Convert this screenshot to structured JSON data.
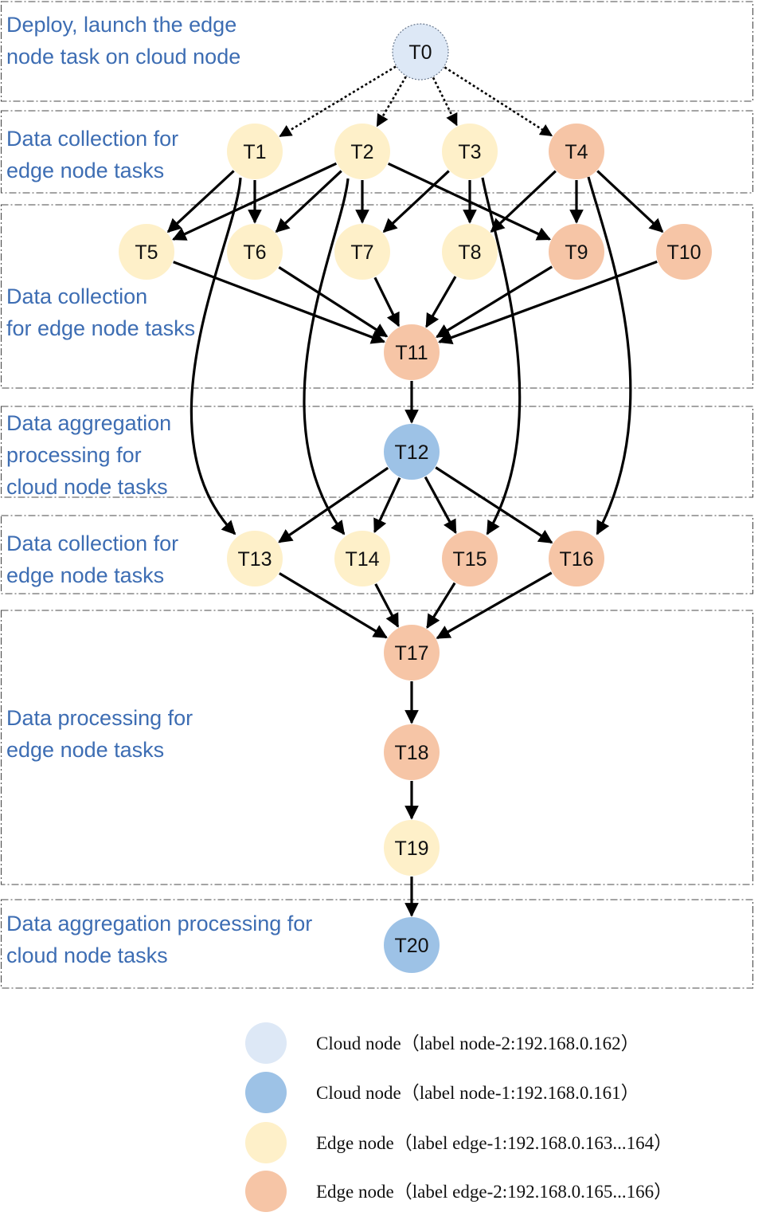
{
  "colors": {
    "cloud_light": "#dde8f6",
    "cloud_dark": "#9dc2e6",
    "edge_light": "#fef0c9",
    "edge_dark": "#f6c5a6",
    "stage_text": "#3d6db3",
    "edge_stroke": "#000000"
  },
  "stages": [
    {
      "lines": [
        "Deploy, launch the edge",
        "node task on cloud node"
      ]
    },
    {
      "lines": [
        "Data collection for",
        "edge node tasks"
      ]
    },
    {
      "lines": [
        "Data collection",
        "for edge node tasks"
      ]
    },
    {
      "lines": [
        "Data aggregation",
        "processing for",
        "cloud node tasks"
      ]
    },
    {
      "lines": [
        "Data collection for",
        "edge node tasks"
      ]
    },
    {
      "lines": [
        "Data processing for",
        "edge node tasks"
      ]
    },
    {
      "lines": [
        "Data aggregation processing for",
        "cloud node tasks"
      ]
    }
  ],
  "nodes": [
    {
      "id": "T0",
      "label": "T0",
      "kind": "cloud_light"
    },
    {
      "id": "T1",
      "label": "T1",
      "kind": "edge_light"
    },
    {
      "id": "T2",
      "label": "T2",
      "kind": "edge_light"
    },
    {
      "id": "T3",
      "label": "T3",
      "kind": "edge_light"
    },
    {
      "id": "T4",
      "label": "T4",
      "kind": "edge_dark"
    },
    {
      "id": "T5",
      "label": "T5",
      "kind": "edge_light"
    },
    {
      "id": "T6",
      "label": "T6",
      "kind": "edge_light"
    },
    {
      "id": "T7",
      "label": "T7",
      "kind": "edge_light"
    },
    {
      "id": "T8",
      "label": "T8",
      "kind": "edge_light"
    },
    {
      "id": "T9",
      "label": "T9",
      "kind": "edge_dark"
    },
    {
      "id": "T10",
      "label": "T10",
      "kind": "edge_dark"
    },
    {
      "id": "T11",
      "label": "T11",
      "kind": "edge_dark"
    },
    {
      "id": "T12",
      "label": "T12",
      "kind": "cloud_dark"
    },
    {
      "id": "T13",
      "label": "T13",
      "kind": "edge_light"
    },
    {
      "id": "T14",
      "label": "T14",
      "kind": "edge_light"
    },
    {
      "id": "T15",
      "label": "T15",
      "kind": "edge_dark"
    },
    {
      "id": "T16",
      "label": "T16",
      "kind": "edge_dark"
    },
    {
      "id": "T17",
      "label": "T17",
      "kind": "edge_dark"
    },
    {
      "id": "T18",
      "label": "T18",
      "kind": "edge_dark"
    },
    {
      "id": "T19",
      "label": "T19",
      "kind": "edge_light"
    },
    {
      "id": "T20",
      "label": "T20",
      "kind": "cloud_dark"
    }
  ],
  "edges": [
    {
      "from": "T0",
      "to": "T1",
      "style": "dotted"
    },
    {
      "from": "T0",
      "to": "T2",
      "style": "dotted"
    },
    {
      "from": "T0",
      "to": "T3",
      "style": "dotted"
    },
    {
      "from": "T0",
      "to": "T4",
      "style": "dotted"
    },
    {
      "from": "T1",
      "to": "T5",
      "style": "solid"
    },
    {
      "from": "T1",
      "to": "T6",
      "style": "solid"
    },
    {
      "from": "T1",
      "to": "T13",
      "style": "solid"
    },
    {
      "from": "T2",
      "to": "T5",
      "style": "solid"
    },
    {
      "from": "T2",
      "to": "T6",
      "style": "solid"
    },
    {
      "from": "T2",
      "to": "T7",
      "style": "solid"
    },
    {
      "from": "T2",
      "to": "T9",
      "style": "solid"
    },
    {
      "from": "T2",
      "to": "T14",
      "style": "solid"
    },
    {
      "from": "T3",
      "to": "T7",
      "style": "solid"
    },
    {
      "from": "T3",
      "to": "T8",
      "style": "solid"
    },
    {
      "from": "T3",
      "to": "T15",
      "style": "solid"
    },
    {
      "from": "T4",
      "to": "T8",
      "style": "solid"
    },
    {
      "from": "T4",
      "to": "T9",
      "style": "solid"
    },
    {
      "from": "T4",
      "to": "T10",
      "style": "solid"
    },
    {
      "from": "T4",
      "to": "T16",
      "style": "solid"
    },
    {
      "from": "T5",
      "to": "T11",
      "style": "solid"
    },
    {
      "from": "T6",
      "to": "T11",
      "style": "solid"
    },
    {
      "from": "T7",
      "to": "T11",
      "style": "solid"
    },
    {
      "from": "T8",
      "to": "T11",
      "style": "solid"
    },
    {
      "from": "T9",
      "to": "T11",
      "style": "solid"
    },
    {
      "from": "T10",
      "to": "T11",
      "style": "solid"
    },
    {
      "from": "T11",
      "to": "T12",
      "style": "solid"
    },
    {
      "from": "T12",
      "to": "T13",
      "style": "solid"
    },
    {
      "from": "T12",
      "to": "T14",
      "style": "solid"
    },
    {
      "from": "T12",
      "to": "T15",
      "style": "solid"
    },
    {
      "from": "T12",
      "to": "T16",
      "style": "solid"
    },
    {
      "from": "T13",
      "to": "T17",
      "style": "solid"
    },
    {
      "from": "T14",
      "to": "T17",
      "style": "solid"
    },
    {
      "from": "T15",
      "to": "T17",
      "style": "solid"
    },
    {
      "from": "T16",
      "to": "T17",
      "style": "solid"
    },
    {
      "from": "T17",
      "to": "T18",
      "style": "solid"
    },
    {
      "from": "T18",
      "to": "T19",
      "style": "solid"
    },
    {
      "from": "T19",
      "to": "T20",
      "style": "solid"
    }
  ],
  "legend": [
    {
      "kind": "cloud_light",
      "text": "Cloud node（label node-2:192.168.0.162）"
    },
    {
      "kind": "cloud_dark",
      "text": "Cloud node（label node-1:192.168.0.161）"
    },
    {
      "kind": "edge_light",
      "text": "Edge node（label edge-1:192.168.0.163...164）"
    },
    {
      "kind": "edge_dark",
      "text": "Edge node（label edge-2:192.168.0.165...166）"
    }
  ]
}
